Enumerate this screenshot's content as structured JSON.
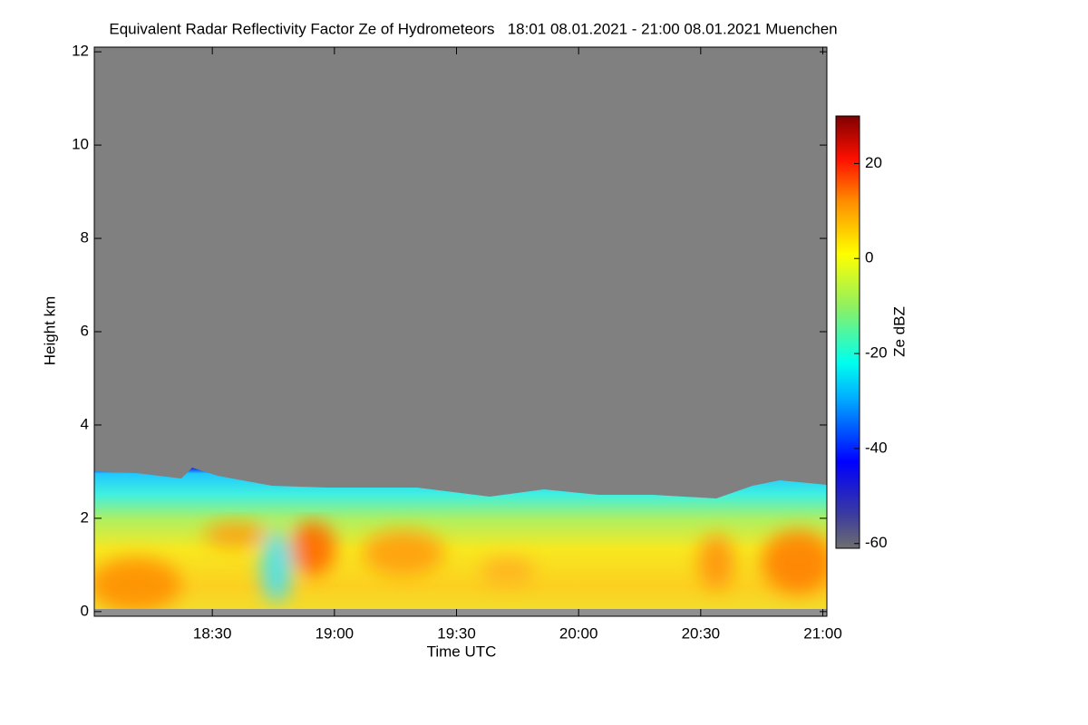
{
  "chart_data": {
    "type": "heatmap",
    "title": "Equivalent Radar Reflectivity Factor Ze of Hydrometeors   18:01 08.01.2021 - 21:00 08.01.2021 Muenchen",
    "x_label": "Time UTC",
    "y_label": "Height km",
    "xlim": [
      1081,
      1261
    ],
    "xticks": [
      {
        "value": 1110,
        "label": "18:30"
      },
      {
        "value": 1140,
        "label": "19:00"
      },
      {
        "value": 1170,
        "label": "19:30"
      },
      {
        "value": 1200,
        "label": "20:00"
      },
      {
        "value": 1230,
        "label": "20:30"
      },
      {
        "value": 1260,
        "label": "21:00"
      }
    ],
    "ylim": [
      -0.1,
      12.1
    ],
    "yticks": [
      0,
      2,
      4,
      6,
      8,
      10,
      12
    ],
    "colorbar": {
      "label": "Ze dBZ",
      "lim": [
        -61,
        30
      ],
      "ticks": [
        20,
        0,
        -20,
        -40,
        -60
      ]
    }
  }
}
